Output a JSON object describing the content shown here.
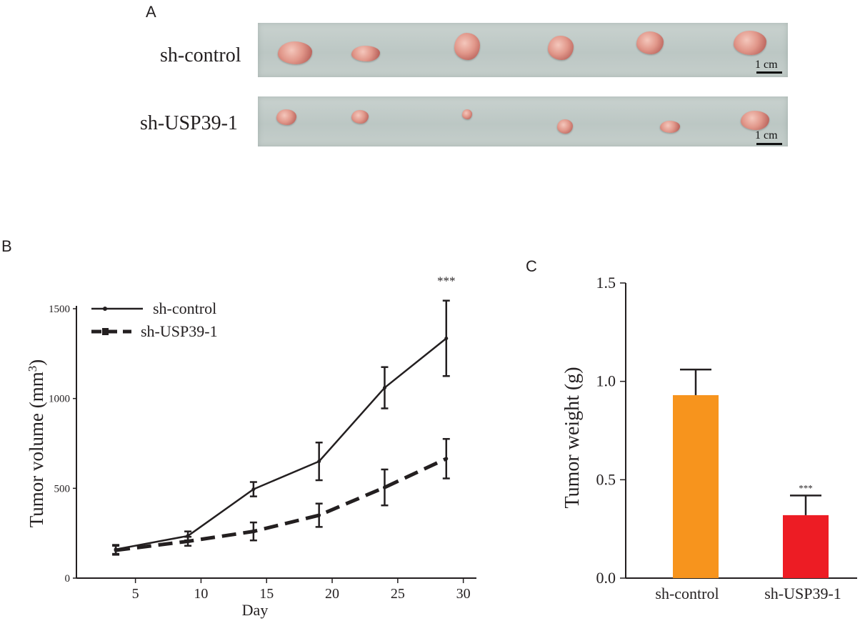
{
  "panel_a": {
    "letter": "A",
    "rows": [
      {
        "label": "sh-control",
        "scale_label": "1 cm"
      },
      {
        "label": "sh-USP39-1",
        "scale_label": "1 cm"
      }
    ]
  },
  "chart_data": [
    {
      "panel": "B",
      "type": "line",
      "title": "",
      "xlabel": "Day",
      "ylabel": "Tumor volume (mm",
      "ylabel_sup": "3",
      "ylabel_close": ")",
      "xlim": [
        0.5,
        31
      ],
      "ylim": [
        0,
        1500
      ],
      "xticks": [
        "5",
        "10",
        "15",
        "20",
        "25",
        "30"
      ],
      "xtick_values": [
        5,
        10,
        15,
        20,
        25,
        30
      ],
      "yticks": [
        "0",
        "500",
        "1000",
        "1500"
      ],
      "ytick_values": [
        0,
        500,
        1000,
        1500
      ],
      "x": [
        3.5,
        9,
        14,
        19,
        24,
        28.7
      ],
      "series": [
        {
          "name": "sh-control",
          "style": "solid",
          "values": [
            160,
            235,
            495,
            650,
            1060,
            1335
          ],
          "errors": [
            25,
            25,
            40,
            105,
            115,
            210
          ]
        },
        {
          "name": "sh-USP39-1",
          "style": "dashed",
          "values": [
            155,
            205,
            260,
            350,
            505,
            665
          ],
          "errors": [
            25,
            25,
            50,
            65,
            100,
            110
          ]
        }
      ],
      "annotation": "***"
    },
    {
      "panel": "C",
      "type": "bar",
      "title": "",
      "xlabel": "",
      "ylabel": "Tumor weight (g)",
      "ylim": [
        0,
        1.5
      ],
      "yticks": [
        "0.0",
        "0.5",
        "1.0",
        "1.5"
      ],
      "ytick_values": [
        0,
        0.5,
        1.0,
        1.5
      ],
      "categories": [
        "sh-control",
        "sh-USP39-1"
      ],
      "values": [
        0.93,
        0.32
      ],
      "errors": [
        0.13,
        0.1
      ],
      "colors": [
        "#f7941d",
        "#ed1c24"
      ],
      "annotations": [
        "",
        "***"
      ]
    }
  ]
}
